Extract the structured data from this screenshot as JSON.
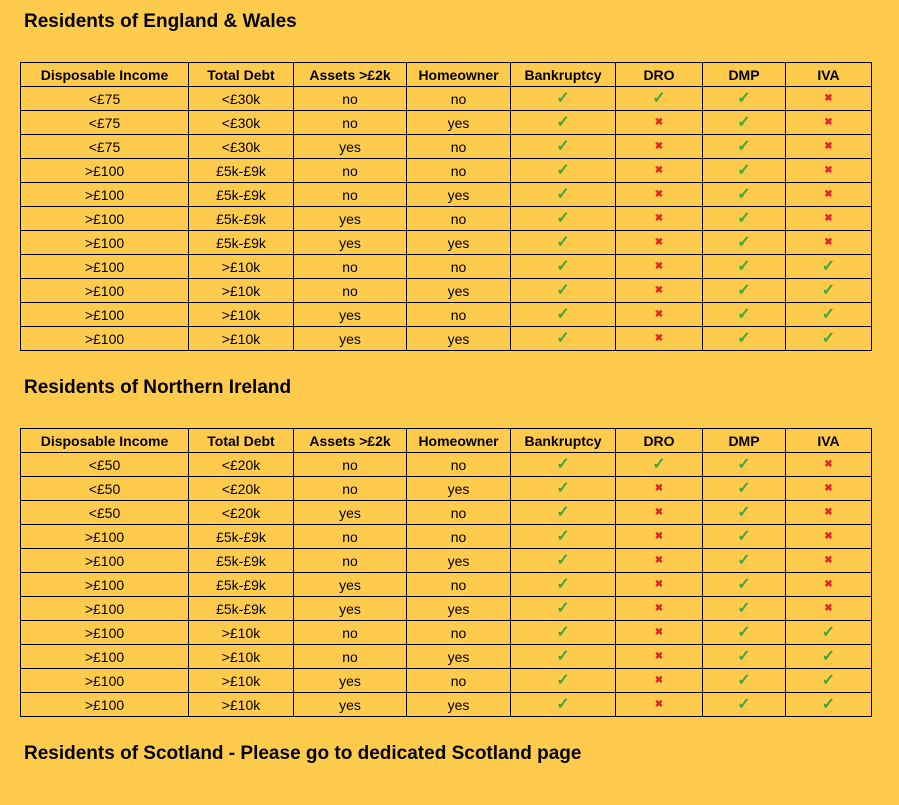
{
  "sections": [
    {
      "title": "Residents of England & Wales",
      "table": {
        "headers": [
          "Disposable Income",
          "Total Debt",
          "Assets >£2k",
          "Homeowner",
          "Bankruptcy",
          "DRO",
          "DMP",
          "IVA"
        ],
        "rows": [
          [
            "<£75",
            "<£30k",
            "no",
            "no",
            "✓",
            "✓",
            "✓",
            "✖"
          ],
          [
            "<£75",
            "<£30k",
            "no",
            "yes",
            "✓",
            "✖",
            "✓",
            "✖"
          ],
          [
            "<£75",
            "<£30k",
            "yes",
            "no",
            "✓",
            "✖",
            "✓",
            "✖"
          ],
          [
            ">£100",
            "£5k-£9k",
            "no",
            "no",
            "✓",
            "✖",
            "✓",
            "✖"
          ],
          [
            ">£100",
            "£5k-£9k",
            "no",
            "yes",
            "✓",
            "✖",
            "✓",
            "✖"
          ],
          [
            ">£100",
            "£5k-£9k",
            "yes",
            "no",
            "✓",
            "✖",
            "✓",
            "✖"
          ],
          [
            ">£100",
            "£5k-£9k",
            "yes",
            "yes",
            "✓",
            "✖",
            "✓",
            "✖"
          ],
          [
            ">£100",
            ">£10k",
            "no",
            "no",
            "✓",
            "✖",
            "✓",
            "✓"
          ],
          [
            ">£100",
            ">£10k",
            "no",
            "yes",
            "✓",
            "✖",
            "✓",
            "✓"
          ],
          [
            ">£100",
            ">£10k",
            "yes",
            "no",
            "✓",
            "✖",
            "✓",
            "✓"
          ],
          [
            ">£100",
            ">£10k",
            "yes",
            "yes",
            "✓",
            "✖",
            "✓",
            "✓"
          ]
        ]
      }
    },
    {
      "title": "Residents of Northern Ireland",
      "table": {
        "headers": [
          "Disposable Income",
          "Total Debt",
          "Assets >£2k",
          "Homeowner",
          "Bankruptcy",
          "DRO",
          "DMP",
          "IVA"
        ],
        "rows": [
          [
            "<£50",
            "<£20k",
            "no",
            "no",
            "✓",
            "✓",
            "✓",
            "✖"
          ],
          [
            "<£50",
            "<£20k",
            "no",
            "yes",
            "✓",
            "✖",
            "✓",
            "✖"
          ],
          [
            "<£50",
            "<£20k",
            "yes",
            "no",
            "✓",
            "✖",
            "✓",
            "✖"
          ],
          [
            ">£100",
            "£5k-£9k",
            "no",
            "no",
            "✓",
            "✖",
            "✓",
            "✖"
          ],
          [
            ">£100",
            "£5k-£9k",
            "no",
            "yes",
            "✓",
            "✖",
            "✓",
            "✖"
          ],
          [
            ">£100",
            "£5k-£9k",
            "yes",
            "no",
            "✓",
            "✖",
            "✓",
            "✖"
          ],
          [
            ">£100",
            "£5k-£9k",
            "yes",
            "yes",
            "✓",
            "✖",
            "✓",
            "✖"
          ],
          [
            ">£100",
            ">£10k",
            "no",
            "no",
            "✓",
            "✖",
            "✓",
            "✓"
          ],
          [
            ">£100",
            ">£10k",
            "no",
            "yes",
            "✓",
            "✖",
            "✓",
            "✓"
          ],
          [
            ">£100",
            ">£10k",
            "yes",
            "no",
            "✓",
            "✖",
            "✓",
            "✓"
          ],
          [
            ">£100",
            ">£10k",
            "yes",
            "yes",
            "✓",
            "✖",
            "✓",
            "✓"
          ]
        ]
      }
    }
  ],
  "footer": "Residents of Scotland - Please go to dedicated Scotland page",
  "mark_styles": {
    "✓": {
      "color": "#3ea83a",
      "size": 16
    },
    "✖": {
      "color": "#e3262b",
      "size": 10
    }
  }
}
